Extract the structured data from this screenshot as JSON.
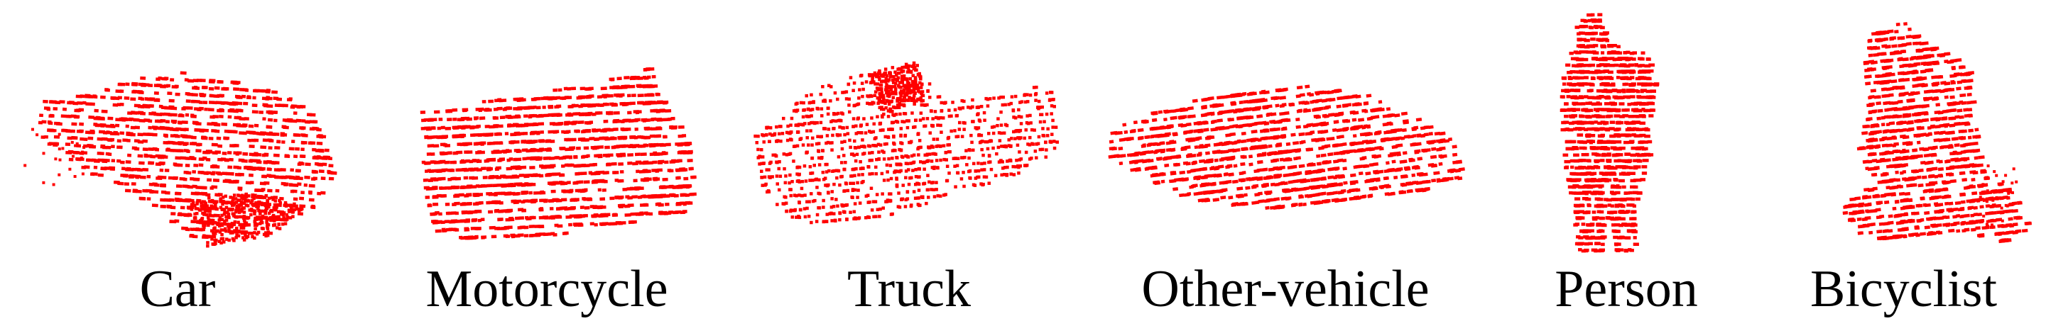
{
  "figure": {
    "point_color": "#ff0000",
    "background": "#ffffff",
    "panels": [
      {
        "label": "Car"
      },
      {
        "label": "Motorcycle"
      },
      {
        "label": "Truck"
      },
      {
        "label": "Other-vehicle"
      },
      {
        "label": "Person"
      },
      {
        "label": "Bicyclist"
      }
    ]
  }
}
